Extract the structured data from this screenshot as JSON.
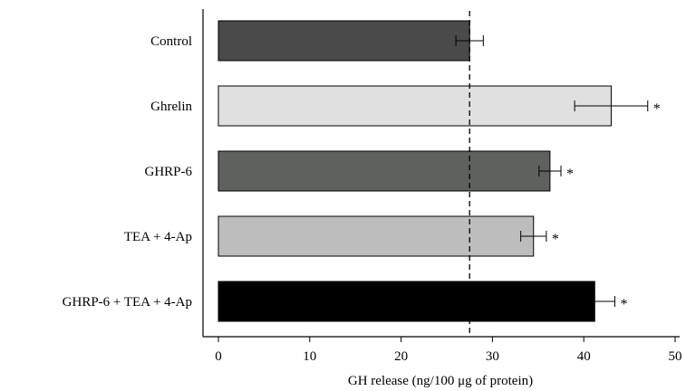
{
  "chart_data": {
    "type": "bar",
    "orientation": "horizontal",
    "categories": [
      "Control",
      "Ghrelin",
      "GHRP-6",
      "TEA + 4-Ap",
      "GHRP-6 + TEA + 4-Ap"
    ],
    "values": [
      27.5,
      43.0,
      36.3,
      34.5,
      41.2
    ],
    "errors": [
      1.5,
      4.0,
      1.2,
      1.4,
      2.2
    ],
    "significance": [
      "",
      "*",
      "*",
      "*",
      "*"
    ],
    "colors": [
      "#4a4a4a",
      "#e0e0e0",
      "#5f615f",
      "#bdbdbd",
      "#000000"
    ],
    "reference_line": 27.5,
    "xlim": [
      0,
      50
    ],
    "xticks": [
      "0",
      "10",
      "20",
      "30",
      "40",
      "50"
    ],
    "xlabel": "GH release (ng/100 μg of protein)",
    "ylabel": "",
    "title": "",
    "grid": false
  }
}
